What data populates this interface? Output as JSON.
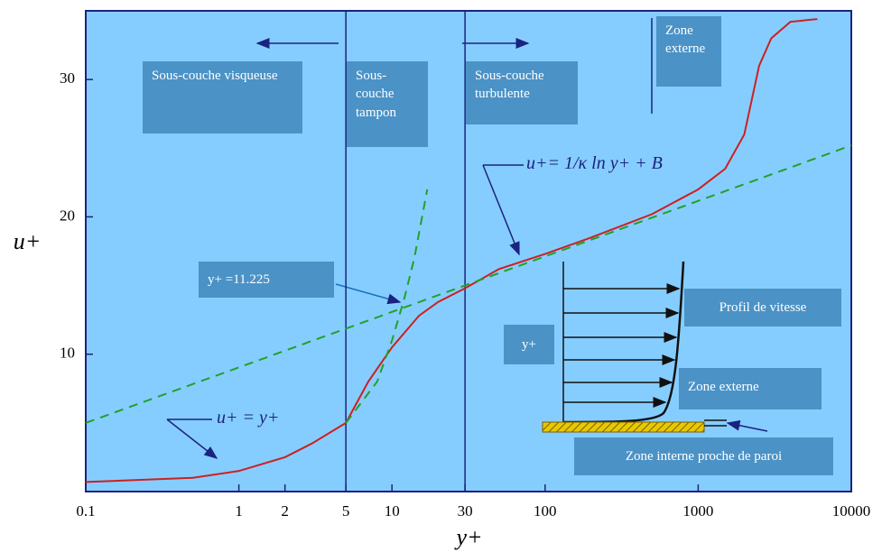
{
  "chart_data": {
    "type": "line",
    "xlabel": "y+",
    "ylabel": "u+",
    "xscale": "log",
    "xlim": [
      0.1,
      10000
    ],
    "ylim": [
      0,
      35
    ],
    "xticks": [
      0.1,
      1,
      2,
      5,
      10,
      30,
      100,
      1000,
      10000
    ],
    "yticks": [
      10,
      20,
      30
    ],
    "series": [
      {
        "color": "#cc2020",
        "style": "solid",
        "x": [
          0.1,
          0.5,
          1,
          2,
          3,
          5,
          7,
          10,
          15,
          20,
          30,
          50,
          100,
          200,
          500,
          1000,
          1500,
          2000,
          2500,
          3000,
          4000,
          6000
        ],
        "values": [
          0.7,
          1.0,
          1.5,
          2.5,
          3.5,
          5,
          8,
          10.5,
          12.8,
          13.8,
          14.8,
          16.2,
          17.3,
          18.5,
          20.2,
          22,
          23.5,
          26,
          31,
          33,
          34.2,
          34.4
        ]
      },
      {
        "color": "#22a02a",
        "style": "dashed",
        "x": [
          0.1,
          10000
        ],
        "values": [
          5,
          25.2
        ]
      },
      {
        "color": "#22a02a",
        "style": "dashed",
        "x": [
          5,
          8,
          10,
          12,
          14,
          17
        ],
        "values": [
          5,
          8,
          11,
          14,
          17,
          22
        ]
      }
    ],
    "vlines": [
      5,
      30
    ],
    "annotations": [
      "Sous-couche visqueuse",
      "Sous-couche tampon",
      "Sous-couche turbulente",
      "Zone externe",
      "y+ =11.225",
      "u+= 1/κ ln y+ + B",
      "u+ = y+",
      "Profil de vitesse",
      "y+",
      "Zone externe",
      "Zone interne proche de paroi"
    ]
  }
}
